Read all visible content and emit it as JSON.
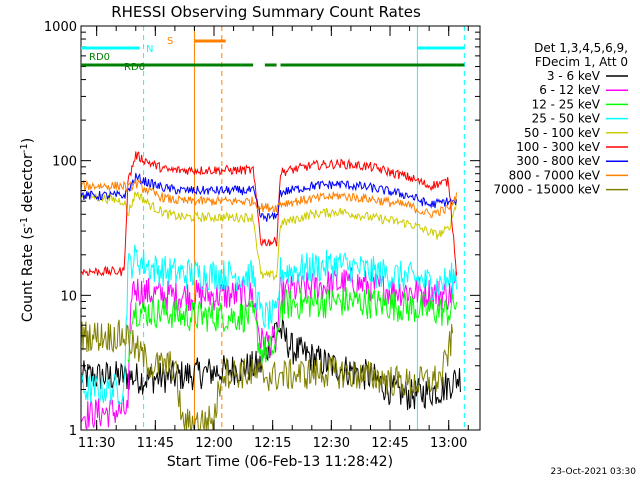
{
  "chart_data": {
    "type": "line",
    "title": "RHESSI Observing Summary Count Rates",
    "xlabel": "Start Time (06-Feb-13 11:28:42)",
    "ylabel_main": "Count Rate (s",
    "ylabel_sup1": "-1",
    "ylabel_mid": " detector",
    "ylabel_sup2": "-1",
    "ylabel_end": ")",
    "yscale": "log",
    "ylim": [
      1,
      1000
    ],
    "xlim": [
      "11:26",
      "13:08"
    ],
    "x_ticks": [
      "11:30",
      "11:45",
      "12:00",
      "12:15",
      "12:30",
      "12:45",
      "13:00"
    ],
    "y_ticks": [
      "1",
      "10",
      "100",
      "1000"
    ],
    "legend_header": [
      "Det 1,3,4,5,6,9,",
      "FDecim 1, Att 0"
    ],
    "legend_position": "right",
    "footer": "23-Oct-2021 03:30",
    "series": [
      {
        "name": "3 - 6 keV",
        "color": "#000000",
        "points": [
          [
            "11:26",
            2.5
          ],
          [
            "11:38",
            2.5
          ],
          [
            "11:42",
            2.4
          ],
          [
            "11:50",
            2.5
          ],
          [
            "12:12",
            3
          ],
          [
            "12:16",
            6
          ],
          [
            "12:20",
            4
          ],
          [
            "12:30",
            3
          ],
          [
            "12:40",
            2.5
          ],
          [
            "12:45",
            2
          ],
          [
            "12:50",
            1.8
          ],
          [
            "12:58",
            2
          ],
          [
            "13:03",
            2.5
          ]
        ]
      },
      {
        "name": "6 - 12 keV",
        "color": "#ff00ff",
        "points": [
          [
            "11:26",
            1.3
          ],
          [
            "11:38",
            1.4
          ],
          [
            "11:39",
            11.5
          ],
          [
            "11:42",
            10.5
          ],
          [
            "11:48",
            10
          ],
          [
            "11:52",
            10
          ],
          [
            "12:10",
            10
          ],
          [
            "12:12",
            4.5
          ],
          [
            "12:16",
            4.5
          ],
          [
            "12:17",
            10.5
          ],
          [
            "12:25",
            11.5
          ],
          [
            "12:35",
            12.5
          ],
          [
            "12:45",
            11
          ],
          [
            "12:55",
            10.5
          ],
          [
            "13:00",
            10
          ],
          [
            "13:02",
            12
          ]
        ]
      },
      {
        "name": "12 - 25 keV",
        "color": "#00ff00",
        "points": [
          [
            "11:38",
            3.3
          ],
          [
            "11:39",
            8
          ],
          [
            "11:42",
            7.5
          ],
          [
            "11:48",
            7.5
          ],
          [
            "11:52",
            7
          ],
          [
            "12:10",
            7
          ],
          [
            "12:12",
            3.8
          ],
          [
            "12:16",
            4
          ],
          [
            "12:17",
            8.5
          ],
          [
            "12:25",
            8.8
          ],
          [
            "12:35",
            9
          ],
          [
            "12:45",
            8.5
          ],
          [
            "12:55",
            7.8
          ],
          [
            "13:00",
            7.5
          ],
          [
            "13:02",
            9
          ]
        ]
      },
      {
        "name": "25 - 50 keV",
        "color": "#00ffff",
        "points": [
          [
            "11:26",
            2
          ],
          [
            "11:37",
            2
          ],
          [
            "11:38",
            16
          ],
          [
            "11:40",
            19
          ],
          [
            "11:44",
            16
          ],
          [
            "11:48",
            15
          ],
          [
            "11:52",
            14.5
          ],
          [
            "12:10",
            14
          ],
          [
            "12:12",
            7
          ],
          [
            "12:16",
            7
          ],
          [
            "12:17",
            15
          ],
          [
            "12:25",
            16
          ],
          [
            "12:32",
            17
          ],
          [
            "12:40",
            15
          ],
          [
            "12:50",
            13.5
          ],
          [
            "12:57",
            12
          ],
          [
            "13:00",
            13
          ],
          [
            "13:02",
            14
          ]
        ]
      },
      {
        "name": "50 - 100 keV",
        "color": "#cccc00",
        "points": [
          [
            "11:26",
            56
          ],
          [
            "11:37",
            50
          ],
          [
            "11:38",
            40
          ],
          [
            "11:40",
            58
          ],
          [
            "11:44",
            46
          ],
          [
            "11:48",
            40
          ],
          [
            "11:52",
            38
          ],
          [
            "12:10",
            38
          ],
          [
            "12:12",
            14
          ],
          [
            "12:16",
            14
          ],
          [
            "12:17",
            34
          ],
          [
            "12:25",
            40
          ],
          [
            "12:32",
            42
          ],
          [
            "12:40",
            38
          ],
          [
            "12:50",
            34
          ],
          [
            "12:57",
            28
          ],
          [
            "13:00",
            31
          ],
          [
            "13:02",
            50
          ]
        ]
      },
      {
        "name": "100 - 300 keV",
        "color": "#ff0000",
        "points": [
          [
            "11:26",
            15
          ],
          [
            "11:37",
            15
          ],
          [
            "11:38",
            70
          ],
          [
            "11:40",
            110
          ],
          [
            "11:44",
            95
          ],
          [
            "11:48",
            85
          ],
          [
            "11:52",
            85
          ],
          [
            "12:10",
            85
          ],
          [
            "12:12",
            25
          ],
          [
            "12:16",
            25
          ],
          [
            "12:17",
            82
          ],
          [
            "12:25",
            92
          ],
          [
            "12:32",
            95
          ],
          [
            "12:40",
            90
          ],
          [
            "12:50",
            75
          ],
          [
            "12:55",
            65
          ],
          [
            "13:00",
            70
          ],
          [
            "13:02",
            15
          ]
        ]
      },
      {
        "name": "300 - 800 keV",
        "color": "#0000ff",
        "points": [
          [
            "11:26",
            55
          ],
          [
            "11:37",
            55
          ],
          [
            "11:38",
            60
          ],
          [
            "11:40",
            75
          ],
          [
            "11:44",
            67
          ],
          [
            "11:48",
            62
          ],
          [
            "11:52",
            60
          ],
          [
            "12:10",
            60
          ],
          [
            "12:12",
            38
          ],
          [
            "12:16",
            38
          ],
          [
            "12:17",
            58
          ],
          [
            "12:25",
            65
          ],
          [
            "12:32",
            67
          ],
          [
            "12:40",
            63
          ],
          [
            "12:50",
            55
          ],
          [
            "12:55",
            47
          ],
          [
            "13:00",
            50
          ],
          [
            "13:02",
            48
          ]
        ]
      },
      {
        "name": "800 - 7000 keV",
        "color": "#ff8000",
        "points": [
          [
            "11:26",
            65
          ],
          [
            "11:37",
            65
          ],
          [
            "11:38",
            62
          ],
          [
            "11:40",
            68
          ],
          [
            "11:44",
            58
          ],
          [
            "11:48",
            52
          ],
          [
            "11:52",
            50
          ],
          [
            "12:10",
            50
          ],
          [
            "12:12",
            45
          ],
          [
            "12:16",
            45
          ],
          [
            "12:17",
            48
          ],
          [
            "12:25",
            52
          ],
          [
            "12:32",
            55
          ],
          [
            "12:40",
            52
          ],
          [
            "12:50",
            46
          ],
          [
            "12:55",
            40
          ],
          [
            "13:00",
            44
          ],
          [
            "13:02",
            55
          ]
        ]
      },
      {
        "name": "7000 - 15000 keV",
        "color": "#808000",
        "points": [
          [
            "11:26",
            5
          ],
          [
            "11:38",
            5
          ],
          [
            "11:39",
            4.3
          ],
          [
            "11:44",
            3
          ],
          [
            "11:50",
            3
          ],
          [
            "11:52",
            1.1
          ],
          [
            "12:00",
            1.2
          ],
          [
            "12:02",
            2.7
          ],
          [
            "12:10",
            2.6
          ],
          [
            "12:15",
            2.5
          ],
          [
            "12:30",
            2.7
          ],
          [
            "12:40",
            2.5
          ],
          [
            "12:50",
            2.2
          ],
          [
            "12:58",
            2.4
          ],
          [
            "13:01",
            5
          ]
        ]
      }
    ],
    "status_bars": [
      {
        "label": "RD0",
        "color": "#008000",
        "segments": [
          [
            "11:26",
            "11:38"
          ],
          [
            "11:38",
            "12:07"
          ],
          [
            "12:07",
            "12:10"
          ],
          [
            "12:13",
            "12:16"
          ],
          [
            "12:17",
            "13:02"
          ],
          [
            "13:02",
            "13:04"
          ]
        ]
      },
      {
        "label": "RD6",
        "color": "#008000"
      },
      {
        "label": "N",
        "color": "#00ffff",
        "segments": [
          [
            "11:26",
            "11:41"
          ],
          [
            "12:52",
            "13:04"
          ]
        ]
      },
      {
        "label": "S",
        "color": "#ff8000",
        "segments": [
          [
            "11:55",
            "12:03"
          ]
        ]
      }
    ],
    "vlines": [
      {
        "t": "11:42",
        "color": "#00ffff",
        "style": "dashed"
      },
      {
        "t": "11:55",
        "color": "#ff8000",
        "style": "solid"
      },
      {
        "t": "12:02",
        "color": "#ff8000",
        "style": "dashed"
      },
      {
        "t": "12:52",
        "color": "#00ffff",
        "style": "solid"
      },
      {
        "t": "13:04",
        "color": "#00ffff",
        "style": "dashed"
      }
    ]
  }
}
